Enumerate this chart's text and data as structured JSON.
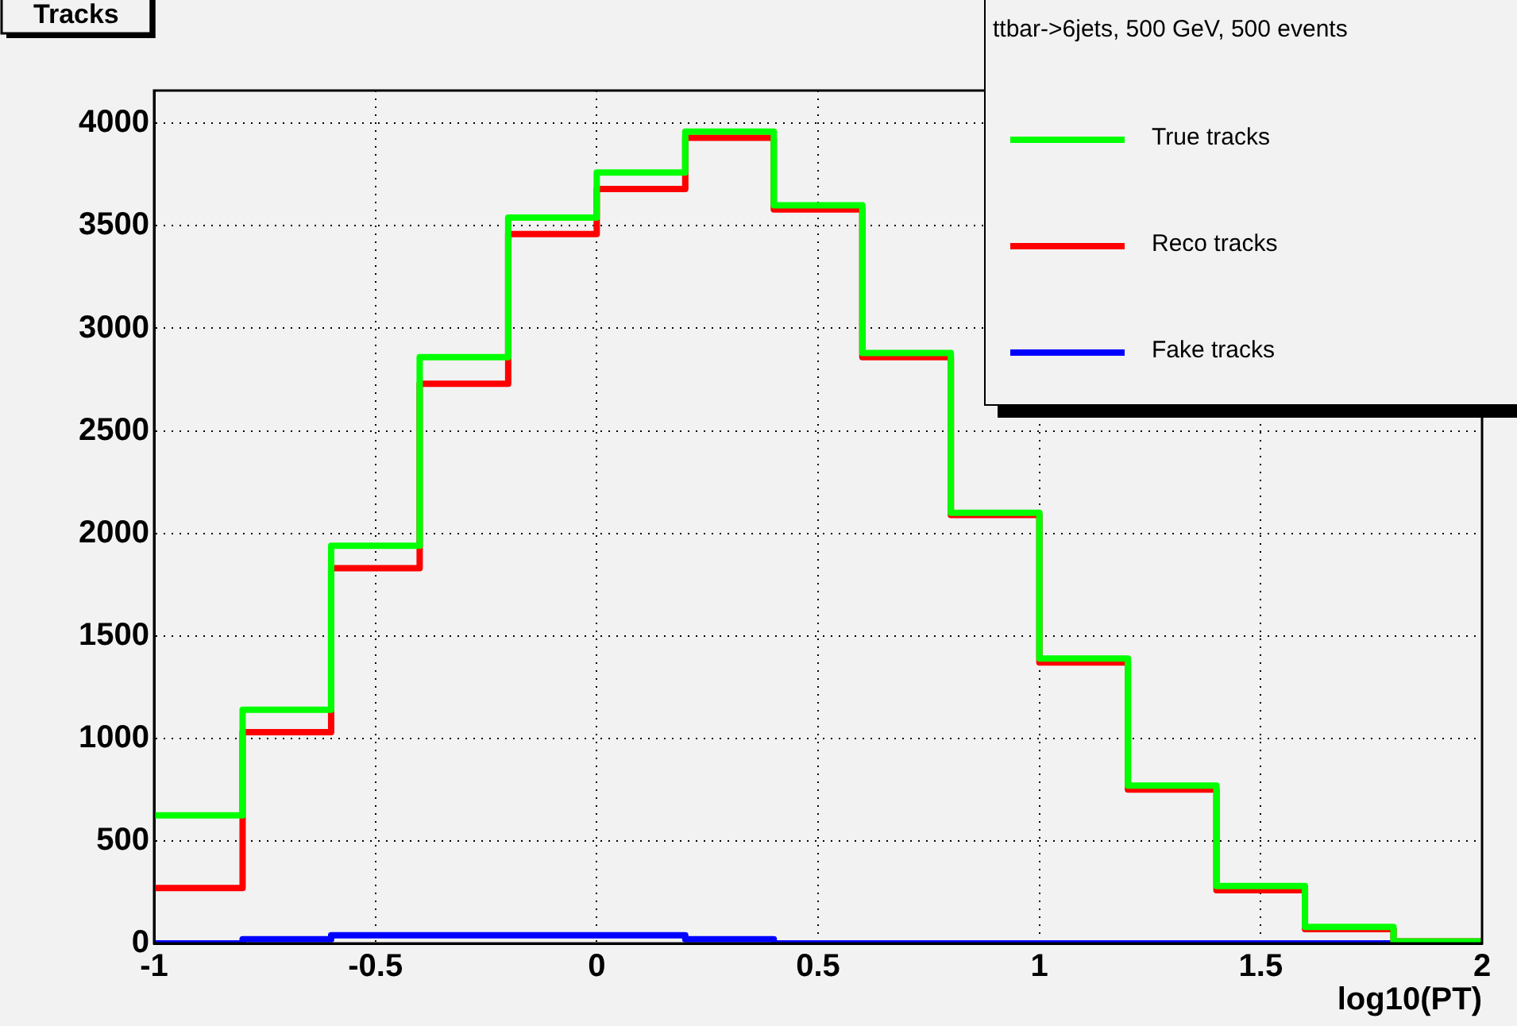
{
  "chart_data": {
    "type": "histogram",
    "title": "Tracks",
    "xlabel": "log10(PT)",
    "legend_title": "ttbar->6jets, 500 GeV, 500 events",
    "bins": [
      -1,
      -0.8,
      -0.6,
      -0.4,
      -0.2,
      0,
      0.2,
      0.4,
      0.6,
      0.8,
      1,
      1.2,
      1.4,
      1.6,
      1.8,
      2
    ],
    "series": [
      {
        "name": "True tracks",
        "color": "#00ff00",
        "values": [
          625,
          1140,
          1940,
          2860,
          3540,
          3760,
          3960,
          3600,
          2880,
          2100,
          1390,
          770,
          280,
          80,
          10
        ]
      },
      {
        "name": "Reco tracks",
        "color": "#ff0000",
        "values": [
          270,
          1030,
          1830,
          2730,
          3460,
          3680,
          3930,
          3580,
          2860,
          2090,
          1370,
          750,
          260,
          70,
          10
        ]
      },
      {
        "name": "Fake tracks",
        "color": "#0000ff",
        "values": [
          0,
          20,
          40,
          40,
          40,
          40,
          20,
          0,
          0,
          0,
          0,
          0,
          0,
          0,
          0
        ]
      }
    ],
    "xlim": [
      -1,
      2
    ],
    "xticks": [
      -1,
      -0.5,
      0,
      0.5,
      1,
      1.5,
      2
    ],
    "ylim": [
      0,
      4160
    ],
    "yticks": [
      0,
      500,
      1000,
      1500,
      2000,
      2500,
      3000,
      3500,
      4000
    ],
    "grid": true,
    "legend": "top right",
    "line_style": "solid"
  }
}
